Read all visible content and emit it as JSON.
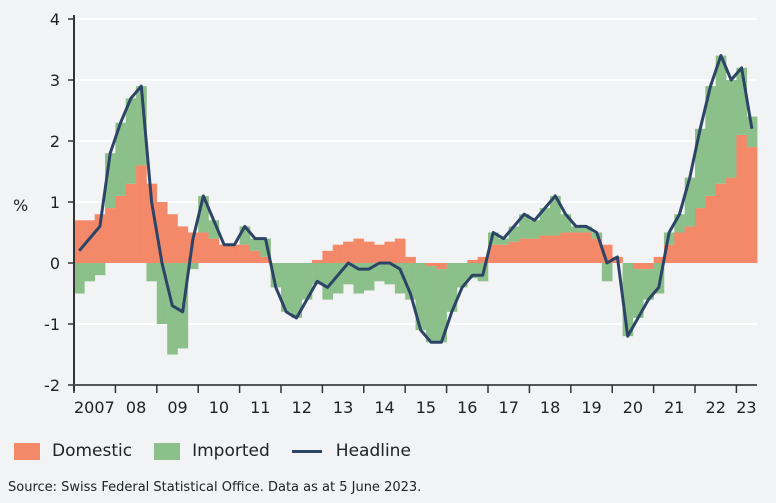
{
  "chart_data": {
    "type": "bar",
    "stacked": true,
    "ylabel": "%",
    "ylim": [
      -2,
      4
    ],
    "yticks": [
      "4",
      "3",
      "2",
      "1",
      "0",
      "-1",
      "-2"
    ],
    "xtick_labels": [
      "2007",
      "08",
      "09",
      "10",
      "11",
      "12",
      "13",
      "14",
      "15",
      "16",
      "17",
      "18",
      "19",
      "20",
      "21",
      "22",
      "23"
    ],
    "grid": true,
    "legend_position": "bottom",
    "colors": {
      "domestic": "#f4896a",
      "imported": "#8cc08a",
      "headline": "#2c4466"
    },
    "periods": [
      "2007Q1",
      "2007Q2",
      "2007Q3",
      "2007Q4",
      "2008Q1",
      "2008Q2",
      "2008Q3",
      "2008Q4",
      "2009Q1",
      "2009Q2",
      "2009Q3",
      "2009Q4",
      "2010Q1",
      "2010Q2",
      "2010Q3",
      "2010Q4",
      "2011Q1",
      "2011Q2",
      "2011Q3",
      "2011Q4",
      "2012Q1",
      "2012Q2",
      "2012Q3",
      "2012Q4",
      "2013Q1",
      "2013Q2",
      "2013Q3",
      "2013Q4",
      "2014Q1",
      "2014Q2",
      "2014Q3",
      "2014Q4",
      "2015Q1",
      "2015Q2",
      "2015Q3",
      "2015Q4",
      "2016Q1",
      "2016Q2",
      "2016Q3",
      "2016Q4",
      "2017Q1",
      "2017Q2",
      "2017Q3",
      "2017Q4",
      "2018Q1",
      "2018Q2",
      "2018Q3",
      "2018Q4",
      "2019Q1",
      "2019Q2",
      "2019Q3",
      "2019Q4",
      "2020Q1",
      "2020Q2",
      "2020Q3",
      "2020Q4",
      "2021Q1",
      "2021Q2",
      "2021Q3",
      "2021Q4",
      "2022Q1",
      "2022Q2",
      "2022Q3",
      "2022Q4",
      "2023Q1",
      "2023Q2"
    ],
    "series": [
      {
        "name": "Domestic",
        "type": "bar",
        "values": [
          0.7,
          0.7,
          0.8,
          0.9,
          1.1,
          1.3,
          1.6,
          1.3,
          1.0,
          0.8,
          0.6,
          0.5,
          0.5,
          0.4,
          0.3,
          0.3,
          0.3,
          0.2,
          0.1,
          0.0,
          0.0,
          0.0,
          0.0,
          0.05,
          0.2,
          0.3,
          0.35,
          0.4,
          0.35,
          0.3,
          0.35,
          0.4,
          0.1,
          0.0,
          -0.05,
          -0.1,
          0.0,
          0.0,
          0.05,
          0.1,
          0.3,
          0.3,
          0.35,
          0.4,
          0.4,
          0.45,
          0.45,
          0.5,
          0.5,
          0.5,
          0.4,
          0.3,
          0.1,
          0.0,
          -0.1,
          -0.1,
          0.1,
          0.3,
          0.5,
          0.6,
          0.9,
          1.1,
          1.3,
          1.4,
          2.1,
          1.9
        ]
      },
      {
        "name": "Imported",
        "type": "bar",
        "values": [
          -0.5,
          -0.3,
          -0.2,
          0.9,
          1.2,
          1.4,
          1.3,
          -0.3,
          -1.0,
          -1.5,
          -1.4,
          -0.1,
          0.6,
          0.3,
          0.0,
          0.0,
          0.3,
          0.2,
          0.3,
          -0.4,
          -0.8,
          -0.9,
          -0.6,
          -0.35,
          -0.6,
          -0.5,
          -0.35,
          -0.5,
          -0.45,
          -0.3,
          -0.35,
          -0.5,
          -0.6,
          -1.1,
          -1.25,
          -1.2,
          -0.8,
          -0.4,
          -0.25,
          -0.3,
          0.2,
          0.1,
          0.25,
          0.4,
          0.3,
          0.45,
          0.65,
          0.3,
          0.1,
          0.1,
          0.1,
          -0.3,
          0.0,
          -1.2,
          -0.8,
          -0.5,
          -0.5,
          0.2,
          0.3,
          0.8,
          1.3,
          1.8,
          2.1,
          1.6,
          1.1,
          0.5
        ]
      },
      {
        "name": "Headline",
        "type": "line",
        "values": [
          0.2,
          0.4,
          0.6,
          1.8,
          2.3,
          2.7,
          2.9,
          1.0,
          0.0,
          -0.7,
          -0.8,
          0.4,
          1.1,
          0.7,
          0.3,
          0.3,
          0.6,
          0.4,
          0.4,
          -0.4,
          -0.8,
          -0.9,
          -0.6,
          -0.3,
          -0.4,
          -0.2,
          0.0,
          -0.1,
          -0.1,
          0.0,
          0.0,
          -0.1,
          -0.5,
          -1.1,
          -1.3,
          -1.3,
          -0.8,
          -0.4,
          -0.2,
          -0.2,
          0.5,
          0.4,
          0.6,
          0.8,
          0.7,
          0.9,
          1.1,
          0.8,
          0.6,
          0.6,
          0.5,
          0.0,
          0.1,
          -1.2,
          -0.9,
          -0.6,
          -0.4,
          0.5,
          0.8,
          1.4,
          2.2,
          2.9,
          3.4,
          3.0,
          3.2,
          2.2
        ]
      }
    ]
  },
  "legend": {
    "domestic": "Domestic",
    "imported": "Imported",
    "headline": "Headline"
  },
  "source": "Source: Swiss Federal Statistical Office. Data as at 5 June 2023."
}
